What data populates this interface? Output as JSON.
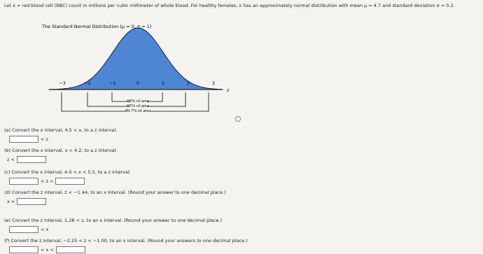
{
  "intro": "Let x = red blood cell (RBC) count in millions per cubic millimeter of whole blood. For healthy females, x has an approximately normal distribution with mean μ = 4.7 and standard deviation σ = 0.2.",
  "figure": {
    "title": "The Standard Normal Distribution (μ = 0, σ = 1)",
    "ticks": [
      "−3",
      "−2",
      "−1",
      "0",
      "1",
      "2",
      "3"
    ],
    "axis_label": "z",
    "brackets": [
      "68% of area",
      "95% of area",
      "99.7% of area"
    ]
  },
  "parts": [
    {
      "label": "(a)",
      "question": "Convert the x interval, 4.5 < x, to a z interval.",
      "after": "< z"
    },
    {
      "label": "(b)",
      "question": "Convert the x interval, x < 4.2, to a z interval.",
      "before": "z <"
    },
    {
      "label": "(c)",
      "question": "Convert the x interval, 4.0 < x < 5.5, to a z interval.",
      "middle": "< z <"
    },
    {
      "label": "(d)",
      "question": "Convert the z interval, z < −1.44, to an x interval. (Round your answer to one decimal place.)",
      "before": "x <"
    },
    {
      "label": "(e)",
      "question": "Convert the z interval, 1.28 < z, to an x interval. (Round your answer to one decimal place.)",
      "after": "< x"
    },
    {
      "label": "(f)",
      "question": "Convert the z interval, −2.25 < z < −1.00, to an x interval. (Round your answers to one decimal place.)",
      "middle": "< x <"
    }
  ]
}
